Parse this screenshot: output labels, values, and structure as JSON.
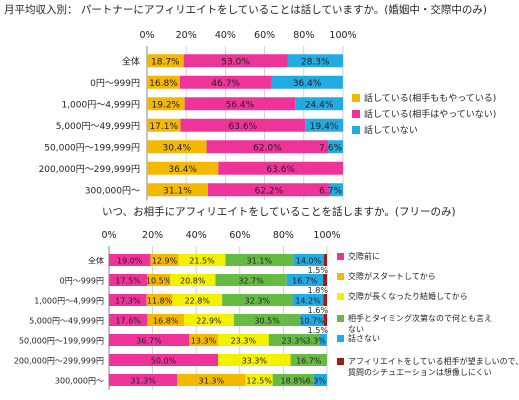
{
  "chart_data": [
    {
      "type": "bar",
      "orientation": "horizontal",
      "stacked": true,
      "title": "月平均収入別： パートナーにアフィリエイトをしていることは話していますか。(婚姻中・交際中のみ)",
      "xlim": [
        0,
        100
      ],
      "x_ticks": [
        "0%",
        "20%",
        "40%",
        "60%",
        "80%",
        "100%"
      ],
      "categories": [
        "全体",
        "0円〜999円",
        "1,000円〜4,999円",
        "5,000円〜49,999円",
        "50,000円〜199,999円",
        "200,000円〜299,999円",
        "300,000円〜"
      ],
      "series": [
        {
          "name": "話している(相手ももやっている)",
          "color": "#f5b800",
          "values": [
            18.7,
            16.8,
            19.2,
            17.1,
            30.4,
            36.4,
            31.1
          ],
          "labels": [
            "18.7%",
            "16.8%",
            "19.2%",
            "17.1%",
            "30.4%",
            "36.4%",
            "31.1%"
          ]
        },
        {
          "name": "話している(相手はやっていない)",
          "color": "#ee3399",
          "values": [
            53.0,
            46.7,
            56.4,
            63.6,
            62.0,
            63.6,
            62.2
          ],
          "labels": [
            "53.0%",
            "46.7%",
            "56.4%",
            "63.6%",
            "62.0%",
            "63.6%",
            "62.2%"
          ]
        },
        {
          "name": "話していない",
          "color": "#22aae2",
          "values": [
            28.3,
            36.4,
            24.4,
            19.4,
            7.6,
            0,
            6.7
          ],
          "labels": [
            "28.3%",
            "36.4%",
            "24.4%",
            "19.4%",
            "7.6%",
            "",
            "6.7%"
          ]
        }
      ],
      "legend_position": "right",
      "grid": true
    },
    {
      "type": "bar",
      "orientation": "horizontal",
      "stacked": true,
      "title": "いつ、お相手にアフィリエイトをしていることを話しますか。(フリーのみ)",
      "xlim": [
        0,
        100
      ],
      "x_ticks": [
        "0%",
        "20%",
        "40%",
        "60%",
        "80%",
        "100%"
      ],
      "categories": [
        "全体",
        "0円〜999円",
        "1,000円〜4,999円",
        "5,000円〜49,999円",
        "50,000円〜199,999円",
        "200,000円〜299,999円",
        "300,000円〜"
      ],
      "series": [
        {
          "name": "交際前に",
          "color": "#ee3399",
          "values": [
            19.0,
            17.5,
            17.3,
            17.6,
            36.7,
            50.0,
            31.3
          ],
          "labels": [
            "19.0%",
            "17.5%",
            "17.3%",
            "17.6%",
            "36.7%",
            "50.0%",
            "31.3%"
          ]
        },
        {
          "name": "交際がスタートしてから",
          "color": "#f5b800",
          "values": [
            12.9,
            10.5,
            11.8,
            16.8,
            13.3,
            0,
            31.3
          ],
          "labels": [
            "12.9%",
            "10.5%",
            "11.8%",
            "16.8%",
            "13.3%",
            "",
            "31.3%"
          ]
        },
        {
          "name": "交際が長くなったり結婚してから",
          "color": "#f5f000",
          "values": [
            21.5,
            20.8,
            22.8,
            22.9,
            23.3,
            33.3,
            12.5
          ],
          "labels": [
            "21.5%",
            "20.8%",
            "22.8%",
            "22.9%",
            "23.3%",
            "33.3%",
            "12.5%"
          ]
        },
        {
          "name": "相手とタイミング次第なので何とも言えない",
          "color": "#66bb44",
          "values": [
            31.1,
            32.7,
            32.3,
            30.5,
            23.3,
            16.7,
            18.8
          ],
          "labels": [
            "31.1%",
            "32.7%",
            "32.3%",
            "30.5%",
            "23.3%",
            "16.7%",
            "18.8%"
          ]
        },
        {
          "name": "話さない",
          "color": "#22aae2",
          "values": [
            14.0,
            16.7,
            14.2,
            10.7,
            3.3,
            0,
            6.3
          ],
          "labels": [
            "14.0%",
            "16.7%",
            "14.2%",
            "10.7%",
            "3.3%",
            "",
            "6.3%"
          ]
        },
        {
          "name": "アフィリエイトをしている相手が望ましいので、質問のシチュエーションは想像しにくい",
          "color": "#9e1a1a",
          "values": [
            1.5,
            1.8,
            1.6,
            1.5,
            0,
            0,
            0
          ],
          "labels": [
            "1.5%",
            "1.8%",
            "1.6%",
            "1.5%",
            "",
            "",
            ""
          ]
        }
      ],
      "legend_position": "right",
      "grid": true
    }
  ]
}
